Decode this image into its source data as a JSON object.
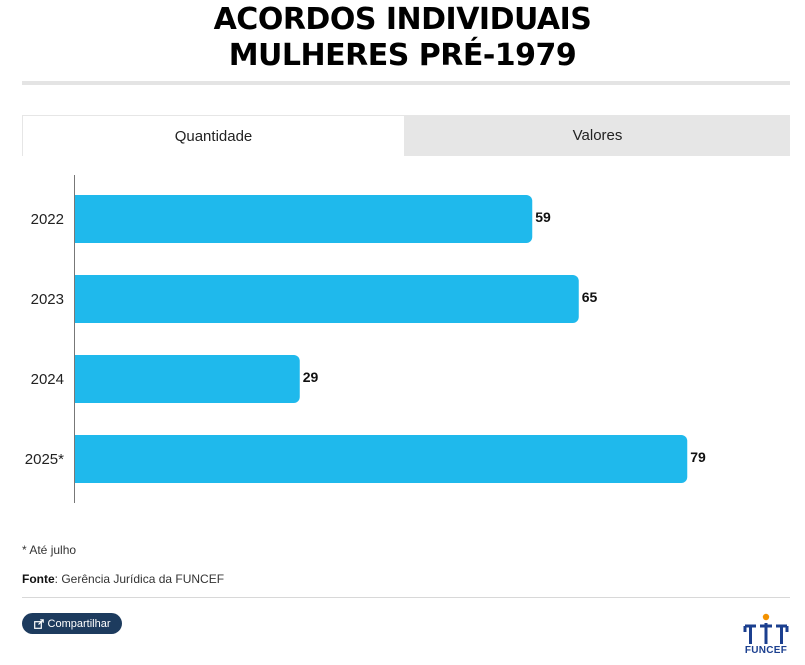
{
  "title": {
    "line1": "ACORDOS INDIVIDUAIS",
    "line2": "MULHERES PRÉ-1979"
  },
  "tabs": [
    {
      "label": "Quantidade",
      "active": true
    },
    {
      "label": "Valores",
      "active": false
    }
  ],
  "chart_data": {
    "type": "bar",
    "orientation": "horizontal",
    "categories": [
      "2022",
      "2023",
      "2024",
      "2025*"
    ],
    "values": [
      59,
      65,
      29,
      79
    ],
    "xlim": [
      0,
      80
    ],
    "grid": false,
    "bar_color": "#1fb9ec"
  },
  "footnote": "* Até julho",
  "source": {
    "label": "Fonte",
    "text": ": Gerência Jurídica da FUNCEF"
  },
  "share_button": {
    "label": "Compartilhar",
    "icon": "share-icon"
  },
  "logo": {
    "text": "FUNCEF",
    "icon": "funcef-logo-icon",
    "color": "#1b3f8f",
    "accent": "#f39200"
  }
}
